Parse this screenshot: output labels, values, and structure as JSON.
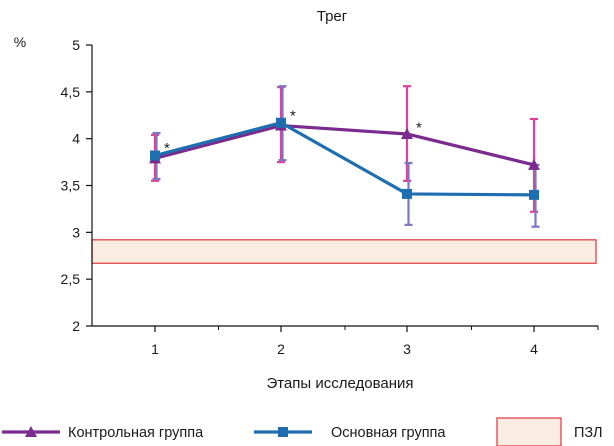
{
  "chart_data": {
    "type": "line",
    "title": "Трег",
    "xlabel": "Этапы исследования",
    "ylabel": "%",
    "x": [
      1,
      2,
      3,
      4
    ],
    "x_ticks": [
      "1",
      "2",
      "3",
      "4"
    ],
    "ylim": [
      2,
      5
    ],
    "y_ticks": [
      "2",
      "2,5",
      "3",
      "3,5",
      "4",
      "4,5",
      "5"
    ],
    "grid": false,
    "legend_position": "bottom",
    "series": [
      {
        "name": "Контрольная группа",
        "marker": "triangle",
        "color": "#7b2b8f",
        "error_color": "#e0409a",
        "values": [
          3.79,
          4.14,
          4.05,
          3.72
        ],
        "err_low": [
          3.55,
          3.75,
          3.55,
          3.22
        ],
        "err_high": [
          4.04,
          4.55,
          4.56,
          4.21
        ]
      },
      {
        "name": "Основная группа",
        "marker": "square",
        "color": "#1f6fb0",
        "error_color": "#7a78c0",
        "values": [
          3.82,
          4.17,
          3.41,
          3.4
        ],
        "err_low": [
          3.57,
          3.77,
          3.08,
          3.06
        ],
        "err_high": [
          4.06,
          4.56,
          3.74,
          3.72
        ]
      }
    ],
    "annotations": [
      {
        "text": "*",
        "x": 1,
        "y": 3.93
      },
      {
        "text": "*",
        "x": 2,
        "y": 4.28
      },
      {
        "text": "*",
        "x": 3,
        "y": 4.15
      }
    ],
    "reference_band": {
      "name": "ПЗЛ",
      "y_low": 2.67,
      "y_high": 2.92,
      "fill": "#fbece2",
      "stroke": "#e0323c"
    }
  }
}
